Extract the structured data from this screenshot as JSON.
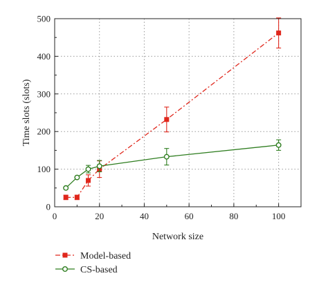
{
  "chart_data": {
    "type": "line",
    "xlabel": "Network size",
    "ylabel": "Time slots (slots)",
    "xlim": [
      0,
      110
    ],
    "ylim": [
      0,
      500
    ],
    "xticks": [
      0,
      20,
      40,
      60,
      80,
      100
    ],
    "yticks": [
      0,
      100,
      200,
      300,
      400,
      500
    ],
    "grid": "dotted, major x and y",
    "legend_placement": "bottom-left, below plot",
    "series": [
      {
        "name": "Model-based",
        "color": "#e0271c",
        "line_style": "dash-dot",
        "marker": "filled-square",
        "points": [
          {
            "x": 5,
            "y": 25,
            "err": 6
          },
          {
            "x": 10,
            "y": 25,
            "err": 6
          },
          {
            "x": 15,
            "y": 70,
            "err": 15
          },
          {
            "x": 20,
            "y": 100,
            "err": 22
          },
          {
            "x": 50,
            "y": 232,
            "err": 33
          },
          {
            "x": 100,
            "y": 462,
            "err": 40
          }
        ]
      },
      {
        "name": "CS-based",
        "color": "#2e7d1f",
        "line_style": "solid",
        "marker": "open-circle",
        "points": [
          {
            "x": 5,
            "y": 50,
            "err": 0
          },
          {
            "x": 10,
            "y": 78,
            "err": 0
          },
          {
            "x": 15,
            "y": 100,
            "err": 10
          },
          {
            "x": 20,
            "y": 108,
            "err": 15
          },
          {
            "x": 50,
            "y": 133,
            "err": 22
          },
          {
            "x": 100,
            "y": 164,
            "err": 14
          }
        ]
      }
    ]
  }
}
